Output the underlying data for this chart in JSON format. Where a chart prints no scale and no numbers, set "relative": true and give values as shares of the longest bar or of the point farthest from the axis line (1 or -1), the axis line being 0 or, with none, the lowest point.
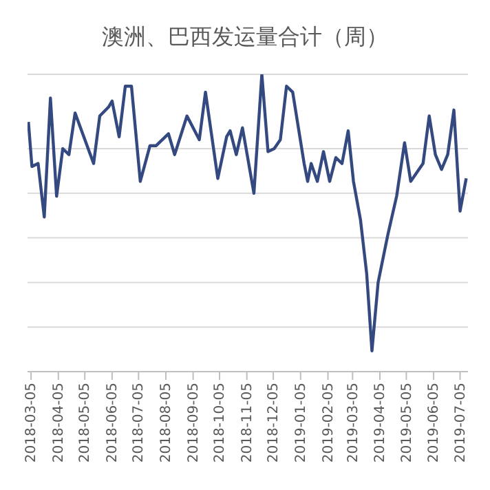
{
  "chart_data": {
    "type": "line",
    "title": "澳洲、巴西发运量合计（周）",
    "relative": true,
    "grid": "y",
    "marker": "none",
    "line_style": "solid",
    "xlim": [
      "2018-03-01",
      "2019-07-14"
    ],
    "xticks": [
      "2018-03-05",
      "2018-04-05",
      "2018-05-05",
      "2018-06-05",
      "2018-07-05",
      "2018-08-05",
      "2018-09-05",
      "2018-10-05",
      "2018-11-05",
      "2018-12-05",
      "2019-01-05",
      "2019-02-05",
      "2019-03-05",
      "2019-04-05",
      "2019-05-05",
      "2019-06-05",
      "2019-07-05"
    ],
    "x": [
      "2018-03-02",
      "2018-03-06",
      "2018-03-13",
      "2018-03-20",
      "2018-03-27",
      "2018-04-03",
      "2018-04-10",
      "2018-04-17",
      "2018-04-24",
      "2018-05-15",
      "2018-05-22",
      "2018-06-01",
      "2018-06-05",
      "2018-06-13",
      "2018-06-20",
      "2018-06-27",
      "2018-07-07",
      "2018-07-18",
      "2018-07-25",
      "2018-08-08",
      "2018-08-15",
      "2018-08-29",
      "2018-09-12",
      "2018-09-19",
      "2018-10-03",
      "2018-10-13",
      "2018-10-17",
      "2018-10-24",
      "2018-10-31",
      "2018-11-13",
      "2018-11-22",
      "2018-11-29",
      "2018-12-06",
      "2018-12-13",
      "2018-12-20",
      "2018-12-27",
      "2019-01-09",
      "2019-01-13",
      "2019-01-17",
      "2019-01-24",
      "2019-01-31",
      "2019-02-07",
      "2019-02-14",
      "2019-02-21",
      "2019-02-28",
      "2019-03-06",
      "2019-03-14",
      "2019-03-21",
      "2019-03-27",
      "2019-04-03",
      "2019-04-14",
      "2019-04-24",
      "2019-05-03",
      "2019-05-10",
      "2019-05-17",
      "2019-05-24",
      "2019-05-31",
      "2019-06-07",
      "2019-06-14",
      "2019-06-21",
      "2019-06-28",
      "2019-07-05",
      "2019-07-12"
    ],
    "series": [
      {
        "color": "#34497f",
        "values": [
          0.84,
          0.69,
          0.7,
          0.52,
          0.92,
          0.59,
          0.75,
          0.73,
          0.87,
          0.7,
          0.86,
          0.89,
          0.91,
          0.79,
          0.96,
          0.96,
          0.64,
          0.76,
          0.76,
          0.8,
          0.73,
          0.86,
          0.78,
          0.94,
          0.65,
          0.79,
          0.81,
          0.73,
          0.82,
          0.6,
          1,
          0.74,
          0.75,
          0.78,
          0.96,
          0.94,
          0.7,
          0.64,
          0.7,
          0.64,
          0.74,
          0.64,
          0.72,
          0.7,
          0.81,
          0.64,
          0.51,
          0.33,
          0.07,
          0.3,
          0.46,
          0.59,
          0.77,
          0.64,
          0.67,
          0.7,
          0.86,
          0.73,
          0.68,
          0.73,
          0.88,
          0.54,
          0.65
        ]
      }
    ]
  }
}
